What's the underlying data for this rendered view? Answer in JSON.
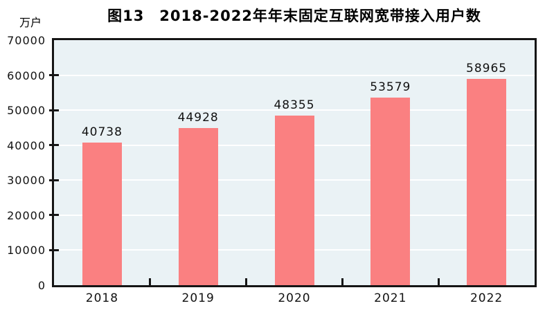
{
  "figure": {
    "title": "图13　2018-2022年年末固定互联网宽带接入用户数",
    "unit_label": "万户"
  },
  "chart_data": {
    "type": "bar",
    "title": "图13　2018-2022年年末固定互联网宽带接入用户数",
    "subtitle": "",
    "xlabel": "",
    "ylabel": "万户",
    "categories": [
      "2018",
      "2019",
      "2020",
      "2021",
      "2022"
    ],
    "values": [
      40738,
      44928,
      48355,
      53579,
      58965
    ],
    "data_labels": [
      40738,
      44928,
      48355,
      53579,
      58965
    ],
    "ylim": [
      0,
      70000
    ],
    "ytick_interval": 10000,
    "yticks": [
      0,
      10000,
      20000,
      30000,
      40000,
      50000,
      60000,
      70000
    ],
    "legend": "none",
    "grid": "horizontal",
    "colors": {
      "bar_fill": "#fa8081",
      "plot_background": "#eaf2f5",
      "gridline": "#ffffff",
      "axis_border": "#151515",
      "text": "#000000"
    }
  }
}
